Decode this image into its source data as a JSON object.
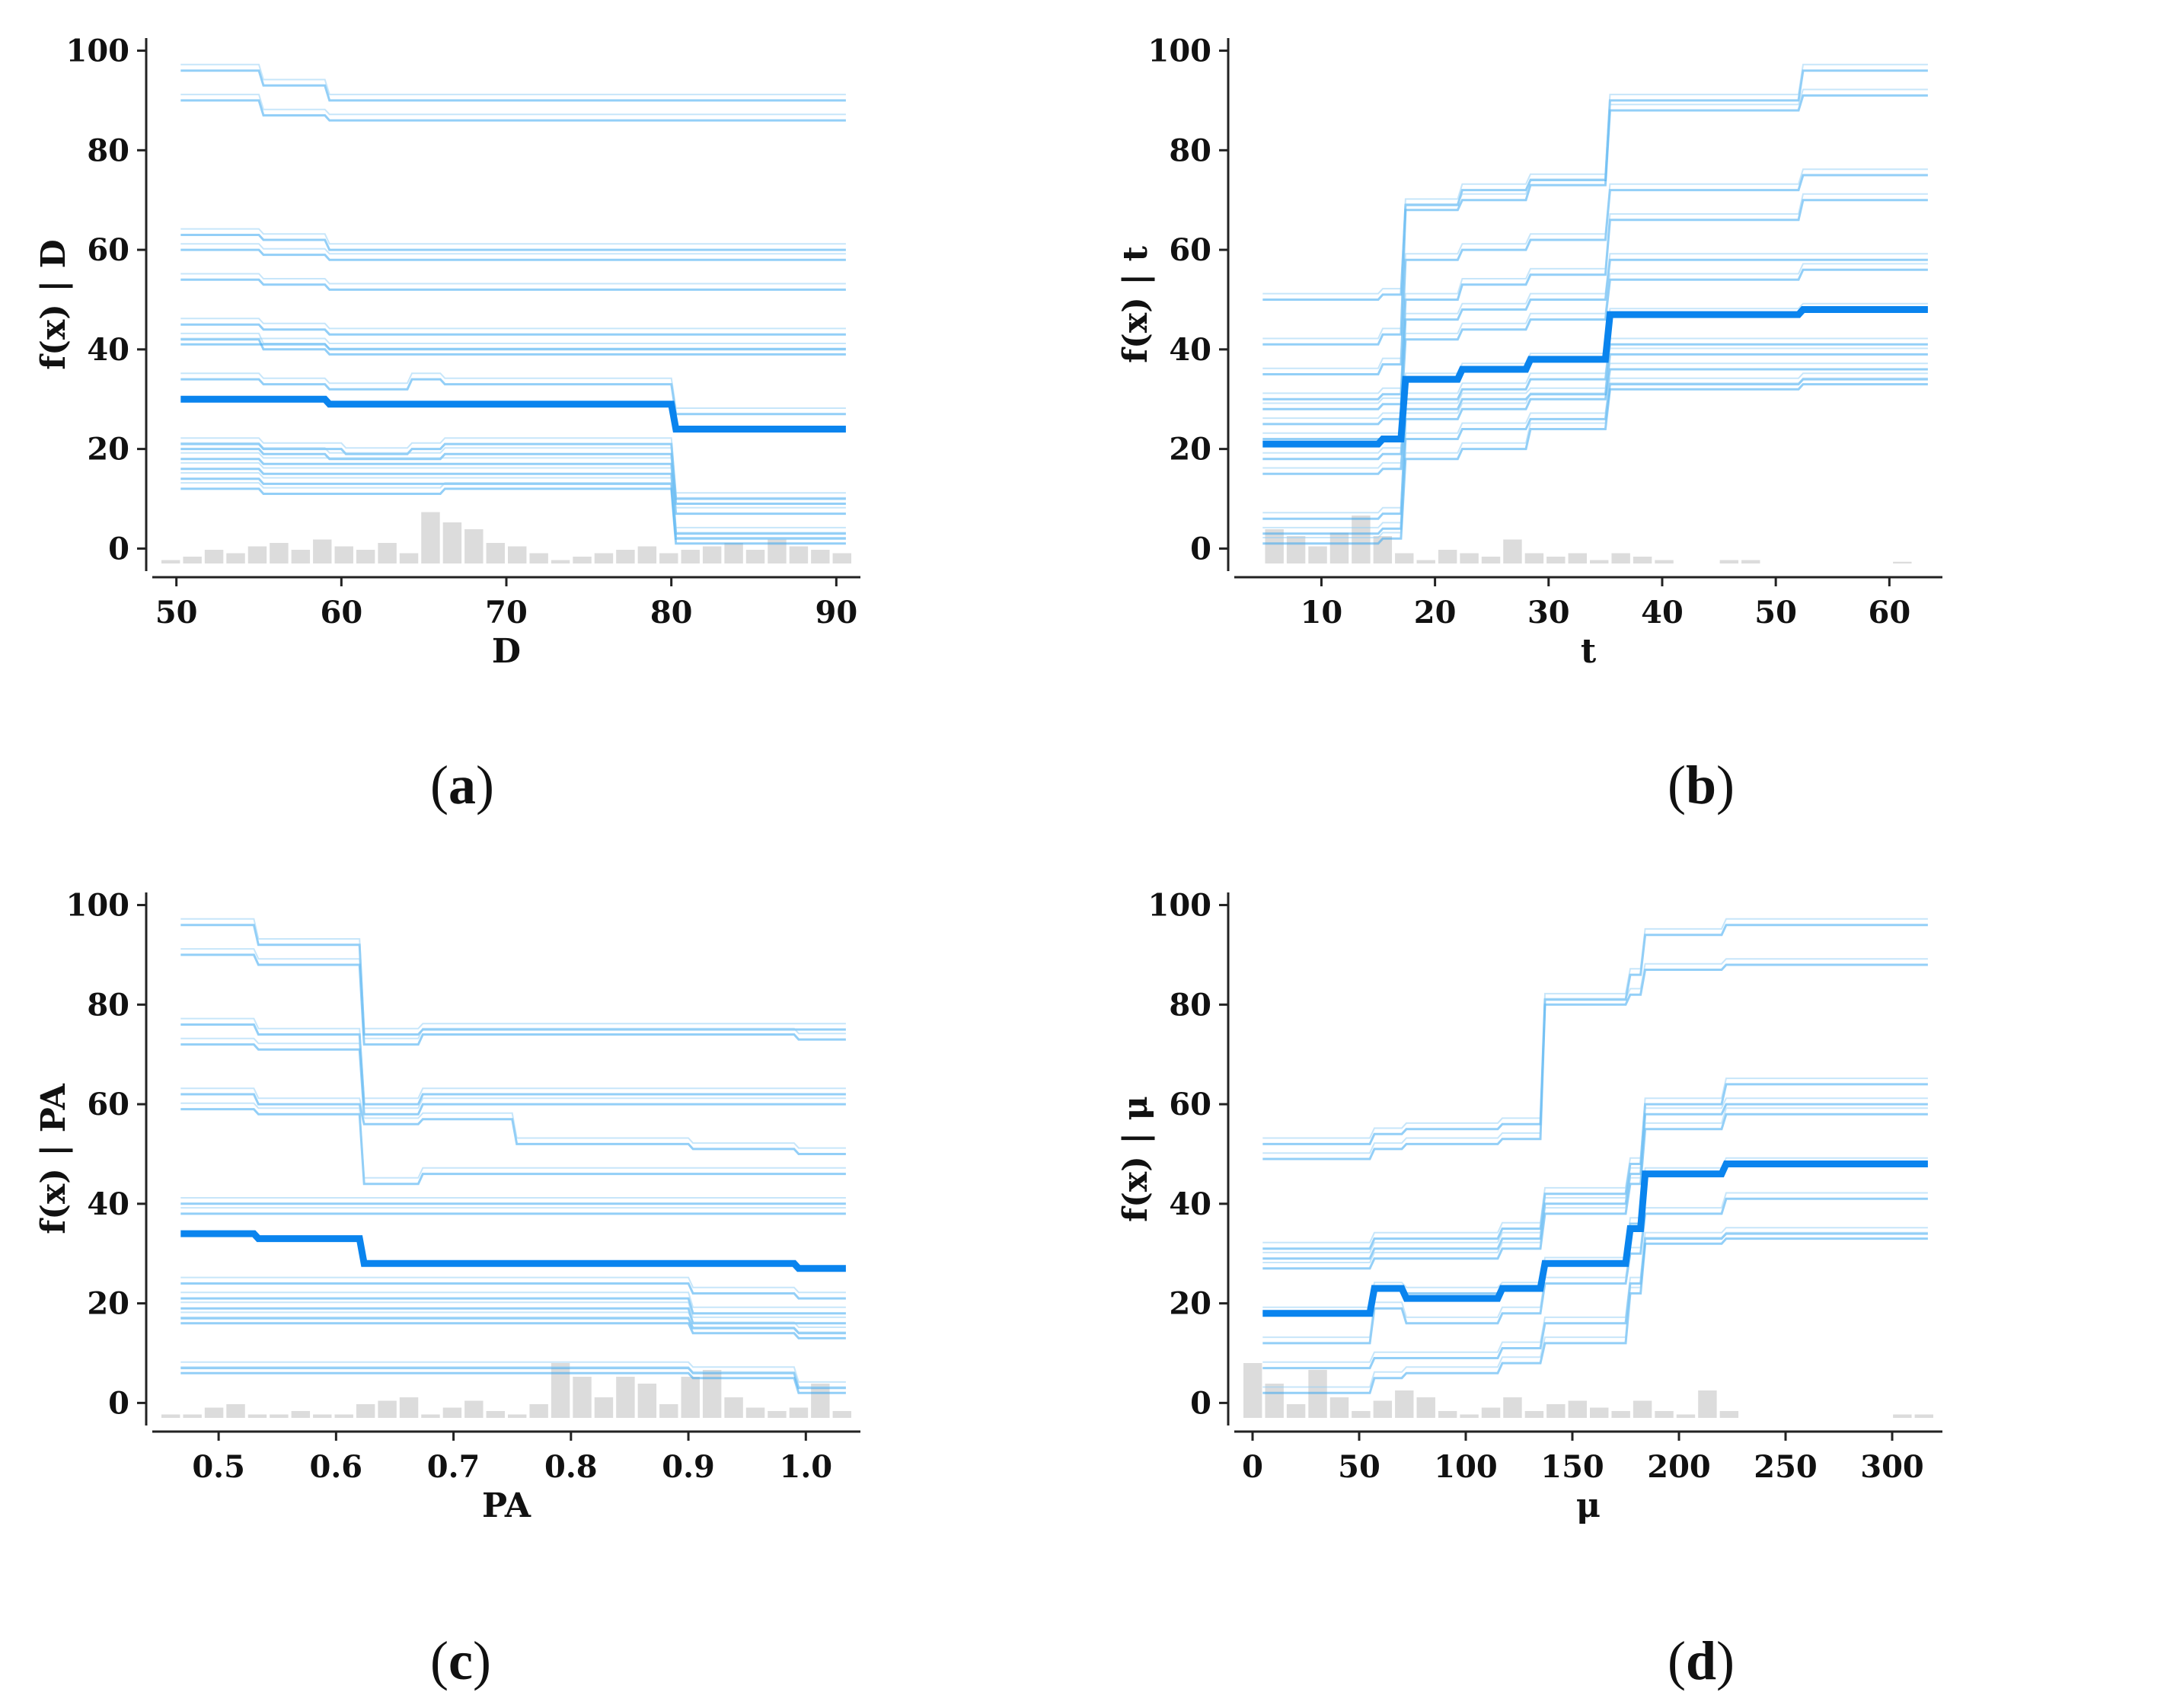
{
  "panel_labels": [
    "a",
    "b",
    "c",
    "d"
  ],
  "chart_data": [
    {
      "type": "line",
      "title": "",
      "xlabel": "D",
      "ylabel": "f(x) | D",
      "xlim": [
        49,
        91
      ],
      "ylim": [
        -3,
        101
      ],
      "xticks": [
        50,
        60,
        70,
        80,
        90
      ],
      "yticks": [
        0,
        20,
        40,
        60,
        80,
        100
      ],
      "step_breaks": [
        55,
        59,
        60,
        64,
        66,
        75,
        80
      ],
      "series": [
        {
          "name": "ice",
          "values": [
            96,
            93,
            90,
            90,
            90,
            90,
            90,
            90
          ]
        },
        {
          "name": "ice",
          "values": [
            90,
            87,
            86,
            86,
            86,
            86,
            86,
            86
          ]
        },
        {
          "name": "ice",
          "values": [
            63,
            62,
            60,
            60,
            60,
            60,
            60,
            60
          ]
        },
        {
          "name": "ice",
          "values": [
            60,
            59,
            58,
            58,
            58,
            58,
            58,
            58
          ]
        },
        {
          "name": "ice",
          "values": [
            54,
            53,
            52,
            52,
            52,
            52,
            52,
            52
          ]
        },
        {
          "name": "ice",
          "values": [
            45,
            44,
            43,
            43,
            43,
            43,
            43,
            43
          ]
        },
        {
          "name": "ice",
          "values": [
            42,
            40,
            39,
            39,
            39,
            39,
            39,
            39
          ]
        },
        {
          "name": "ice",
          "values": [
            41,
            41,
            40,
            40,
            40,
            40,
            40,
            40
          ]
        },
        {
          "name": "ice",
          "values": [
            34,
            33,
            32,
            32,
            34,
            33,
            33,
            27
          ]
        },
        {
          "name": "ice",
          "values": [
            21,
            20,
            20,
            19,
            20,
            21,
            21,
            10
          ]
        },
        {
          "name": "ice",
          "values": [
            20,
            19,
            18,
            18,
            18,
            19,
            19,
            9
          ]
        },
        {
          "name": "ice",
          "values": [
            18,
            17,
            17,
            17,
            17,
            17,
            17,
            7
          ]
        },
        {
          "name": "ice",
          "values": [
            16,
            15,
            15,
            15,
            15,
            15,
            15,
            3
          ]
        },
        {
          "name": "ice",
          "values": [
            14,
            13,
            13,
            13,
            13,
            13,
            13,
            2
          ]
        },
        {
          "name": "ice",
          "values": [
            12,
            11,
            11,
            11,
            11,
            12,
            12,
            1
          ]
        }
      ],
      "average": {
        "name": "average",
        "values": [
          30,
          30,
          29,
          29,
          29,
          29,
          29,
          24
        ]
      },
      "histogram": [
        0.1,
        0.2,
        0.4,
        0.3,
        0.5,
        0.6,
        0.4,
        0.7,
        0.5,
        0.4,
        0.6,
        0.3,
        1.5,
        1.2,
        1.0,
        0.6,
        0.5,
        0.3,
        0.1,
        0.2,
        0.3,
        0.4,
        0.5,
        0.3,
        0.4,
        0.5,
        0.6,
        0.4,
        0.7,
        0.5,
        0.4,
        0.3
      ]
    },
    {
      "type": "line",
      "title": "",
      "xlabel": "t",
      "ylabel": "f(x) | t",
      "xlim": [
        3,
        64
      ],
      "ylim": [
        -3,
        101
      ],
      "xticks": [
        10,
        20,
        30,
        40,
        50,
        60
      ],
      "yticks": [
        0,
        20,
        40,
        60,
        80,
        100
      ],
      "step_breaks": [
        15,
        17,
        22,
        28,
        35,
        37,
        52
      ],
      "series": [
        {
          "name": "ice",
          "values": [
            50,
            51,
            69,
            72,
            74,
            90,
            90,
            96
          ]
        },
        {
          "name": "ice",
          "values": [
            41,
            43,
            68,
            70,
            73,
            88,
            88,
            91
          ]
        },
        {
          "name": "ice",
          "values": [
            35,
            37,
            58,
            60,
            62,
            72,
            72,
            75
          ]
        },
        {
          "name": "ice",
          "values": [
            30,
            31,
            50,
            53,
            55,
            66,
            66,
            70
          ]
        },
        {
          "name": "ice",
          "values": [
            28,
            29,
            46,
            48,
            50,
            58,
            58,
            58
          ]
        },
        {
          "name": "ice",
          "values": [
            25,
            26,
            42,
            44,
            46,
            54,
            54,
            56
          ]
        },
        {
          "name": "ice",
          "values": [
            22,
            22,
            34,
            36,
            38,
            47,
            47,
            48
          ]
        },
        {
          "name": "ice",
          "values": [
            18,
            19,
            30,
            32,
            34,
            41,
            41,
            41
          ]
        },
        {
          "name": "ice",
          "values": [
            15,
            16,
            28,
            30,
            31,
            39,
            39,
            39
          ]
        },
        {
          "name": "ice",
          "values": [
            6,
            7,
            26,
            28,
            30,
            36,
            36,
            36
          ]
        },
        {
          "name": "ice",
          "values": [
            3,
            4,
            22,
            24,
            26,
            33,
            33,
            34
          ]
        },
        {
          "name": "ice",
          "values": [
            1,
            2,
            18,
            20,
            24,
            32,
            32,
            33
          ]
        }
      ],
      "average": {
        "name": "average",
        "values": [
          21,
          22,
          34,
          36,
          38,
          47,
          47,
          48
        ]
      },
      "histogram": [
        0,
        1.0,
        0.8,
        0.5,
        0.9,
        1.4,
        0.8,
        0.3,
        0.1,
        0.4,
        0.3,
        0.2,
        0.7,
        0.3,
        0.2,
        0.3,
        0.1,
        0.3,
        0.2,
        0.1,
        0,
        0,
        0.1,
        0.1,
        0,
        0,
        0,
        0,
        0,
        0,
        0.05,
        0
      ]
    },
    {
      "type": "line",
      "title": "",
      "xlabel": "PA",
      "ylabel": "f(x) | PA",
      "xlim": [
        0.45,
        1.04
      ],
      "ylim": [
        -3,
        101
      ],
      "xticks": [
        0.5,
        0.6,
        0.7,
        0.8,
        0.9,
        1.0
      ],
      "xtick_labels": [
        "0.5",
        "0.6",
        "0.7",
        "0.8",
        "0.9",
        "1.0"
      ],
      "yticks": [
        0,
        20,
        40,
        60,
        80,
        100
      ],
      "step_breaks": [
        0.53,
        0.61,
        0.62,
        0.67,
        0.75,
        0.9,
        0.99
      ],
      "series": [
        {
          "name": "ice",
          "values": [
            96,
            92,
            92,
            74,
            75,
            75,
            75,
            75
          ]
        },
        {
          "name": "ice",
          "values": [
            90,
            88,
            88,
            72,
            74,
            74,
            74,
            73
          ]
        },
        {
          "name": "ice",
          "values": [
            76,
            74,
            74,
            60,
            62,
            62,
            62,
            62
          ]
        },
        {
          "name": "ice",
          "values": [
            72,
            71,
            71,
            58,
            60,
            60,
            60,
            60
          ]
        },
        {
          "name": "ice",
          "values": [
            62,
            60,
            60,
            56,
            57,
            52,
            51,
            50
          ]
        },
        {
          "name": "ice",
          "values": [
            59,
            58,
            58,
            44,
            46,
            46,
            46,
            46
          ]
        },
        {
          "name": "ice",
          "values": [
            40,
            40,
            40,
            40,
            40,
            40,
            40,
            40
          ]
        },
        {
          "name": "ice",
          "values": [
            38,
            38,
            38,
            38,
            38,
            38,
            38,
            38
          ]
        },
        {
          "name": "ice",
          "values": [
            24,
            24,
            24,
            24,
            24,
            24,
            22,
            21
          ]
        },
        {
          "name": "ice",
          "values": [
            21,
            21,
            21,
            21,
            21,
            21,
            18,
            18
          ]
        },
        {
          "name": "ice",
          "values": [
            19,
            19,
            19,
            19,
            19,
            19,
            16,
            16
          ]
        },
        {
          "name": "ice",
          "values": [
            17,
            17,
            17,
            17,
            17,
            17,
            15,
            14
          ]
        },
        {
          "name": "ice",
          "values": [
            16,
            16,
            16,
            16,
            16,
            16,
            14,
            13
          ]
        },
        {
          "name": "ice",
          "values": [
            7,
            7,
            7,
            7,
            7,
            7,
            6,
            3
          ]
        },
        {
          "name": "ice",
          "values": [
            6,
            6,
            6,
            6,
            6,
            6,
            5,
            2
          ]
        }
      ],
      "average": {
        "name": "average",
        "values": [
          34,
          33,
          33,
          28,
          28,
          28,
          28,
          27
        ]
      },
      "histogram": [
        0.1,
        0.1,
        0.3,
        0.4,
        0.1,
        0.1,
        0.2,
        0.1,
        0.1,
        0.4,
        0.5,
        0.6,
        0.1,
        0.3,
        0.5,
        0.2,
        0.1,
        0.4,
        1.6,
        1.2,
        0.6,
        1.2,
        1.0,
        0.4,
        1.2,
        1.4,
        0.6,
        0.3,
        0.2,
        0.3,
        1.0,
        0.2
      ]
    },
    {
      "type": "line",
      "title": "",
      "xlabel": "μ",
      "ylabel": "f(x) | μ",
      "xlim": [
        -5,
        320
      ],
      "ylim": [
        -3,
        101
      ],
      "xticks": [
        0,
        50,
        100,
        150,
        200,
        250,
        300
      ],
      "yticks": [
        0,
        20,
        40,
        60,
        80,
        100
      ],
      "step_breaks": [
        55,
        70,
        115,
        135,
        175,
        182,
        220
      ],
      "series": [
        {
          "name": "ice",
          "values": [
            52,
            54,
            55,
            56,
            81,
            86,
            94,
            96
          ]
        },
        {
          "name": "ice",
          "values": [
            49,
            51,
            52,
            53,
            80,
            82,
            87,
            88
          ]
        },
        {
          "name": "ice",
          "values": [
            31,
            33,
            33,
            35,
            42,
            48,
            60,
            64
          ]
        },
        {
          "name": "ice",
          "values": [
            29,
            31,
            31,
            33,
            40,
            46,
            58,
            60
          ]
        },
        {
          "name": "ice",
          "values": [
            27,
            29,
            29,
            31,
            38,
            44,
            55,
            58
          ]
        },
        {
          "name": "ice",
          "values": [
            18,
            23,
            22,
            23,
            28,
            36,
            46,
            48
          ]
        },
        {
          "name": "ice",
          "values": [
            12,
            19,
            16,
            18,
            24,
            30,
            38,
            41
          ]
        },
        {
          "name": "ice",
          "values": [
            7,
            9,
            9,
            11,
            16,
            24,
            33,
            34
          ]
        },
        {
          "name": "ice",
          "values": [
            2,
            5,
            6,
            8,
            12,
            22,
            32,
            33
          ]
        }
      ],
      "average": {
        "name": "average",
        "values": [
          18,
          23,
          21,
          23,
          28,
          35,
          46,
          48
        ]
      },
      "histogram": [
        1.6,
        1.0,
        0.4,
        1.4,
        0.6,
        0.2,
        0.5,
        0.8,
        0.6,
        0.2,
        0.1,
        0.3,
        0.6,
        0.2,
        0.4,
        0.5,
        0.3,
        0.2,
        0.5,
        0.2,
        0.1,
        0.8,
        0.2,
        0,
        0,
        0,
        0,
        0,
        0,
        0,
        0.1,
        0.1
      ]
    }
  ]
}
